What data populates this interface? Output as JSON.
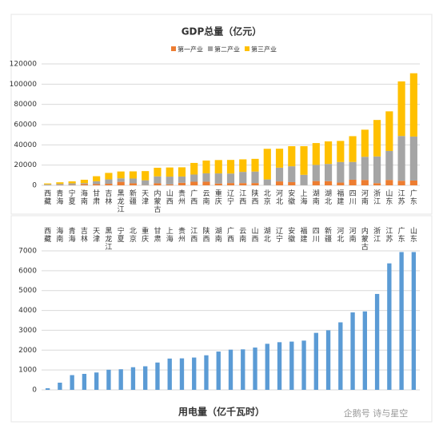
{
  "chart_data": [
    {
      "type": "bar",
      "stacked": true,
      "title": "GDP总量（亿元）",
      "categories": [
        "西藏",
        "青海",
        "宁夏",
        "海南",
        "甘肃",
        "吉林",
        "黑龙江",
        "新疆",
        "天津",
        "内蒙古",
        "山西",
        "贵州",
        "广西",
        "云南",
        "重庆",
        "辽宁",
        "江西",
        "陕西",
        "北京",
        "河北",
        "安徽",
        "上海",
        "湖南",
        "湖北",
        "福建",
        "四川",
        "河南",
        "浙江",
        "山东",
        "江苏",
        "广东"
      ],
      "series": [
        {
          "name": "第一产业",
          "color": "#ed7d31",
          "values": [
            150,
            330,
            340,
            1140,
            1200,
            1550,
            3440,
            2000,
            210,
            2030,
            950,
            2540,
            3560,
            3600,
            1800,
            2280,
            2240,
            2270,
            110,
            3880,
            3180,
            100,
            4240,
            4130,
            2730,
            5560,
            5350,
            2170,
            5360,
            4540,
            4770
          ]
        },
        {
          "name": "第二产业",
          "color": "#a5a5a5",
          "values": [
            810,
            1140,
            1610,
            1060,
            2850,
            4330,
            3480,
            4740,
            4800,
            6870,
            7680,
            6210,
            7110,
            8290,
            9990,
            9400,
            11080,
            11360,
            5720,
            13600,
            15670,
            10290,
            15940,
            17020,
            20330,
            17570,
            22880,
            26410,
            28610,
            44230,
            43450
          ]
        },
        {
          "name": "第三产业",
          "color": "#ffc000",
          "values": [
            950,
            1540,
            1970,
            3330,
            4970,
            6430,
            6780,
            7060,
            9070,
            8460,
            9020,
            9070,
            11490,
            12630,
            13210,
            13440,
            12370,
            12550,
            30280,
            18730,
            19830,
            28310,
            21600,
            22290,
            20840,
            25470,
            26770,
            36030,
            39160,
            53960,
            62540
          ]
        }
      ],
      "ylim": [
        0,
        120000
      ],
      "yticks": [
        0,
        20000,
        40000,
        60000,
        80000,
        100000,
        120000
      ],
      "grid": true,
      "legend": "top"
    },
    {
      "type": "bar",
      "title": "用电量（亿千瓦时）",
      "categories": [
        "西藏",
        "海南",
        "青海",
        "吉林",
        "天津",
        "黑龙江",
        "宁夏",
        "北京",
        "重庆",
        "甘肃",
        "上海",
        "贵州",
        "江西",
        "陕西",
        "湖南",
        "广西",
        "云南",
        "山西",
        "湖北",
        "辽宁",
        "安徽",
        "福建",
        "四川",
        "新疆",
        "河北",
        "河南",
        "内蒙古",
        "浙江",
        "江苏",
        "广东",
        "山东"
      ],
      "values": [
        80,
        362,
        742,
        805,
        875,
        1014,
        1038,
        1140,
        1187,
        1376,
        1576,
        1586,
        1627,
        1741,
        1929,
        2025,
        2040,
        2130,
        2320,
        2400,
        2430,
        2480,
        2870,
        3000,
        3400,
        3900,
        3950,
        4830,
        6370,
        6940,
        6940
      ],
      "color": "#5b9bd5",
      "ylim": [
        0,
        7000
      ],
      "yticks": [
        0,
        1000,
        2000,
        3000,
        4000,
        5000,
        6000,
        7000
      ],
      "grid": true
    }
  ],
  "watermark": "企鹅号 诗与星空"
}
